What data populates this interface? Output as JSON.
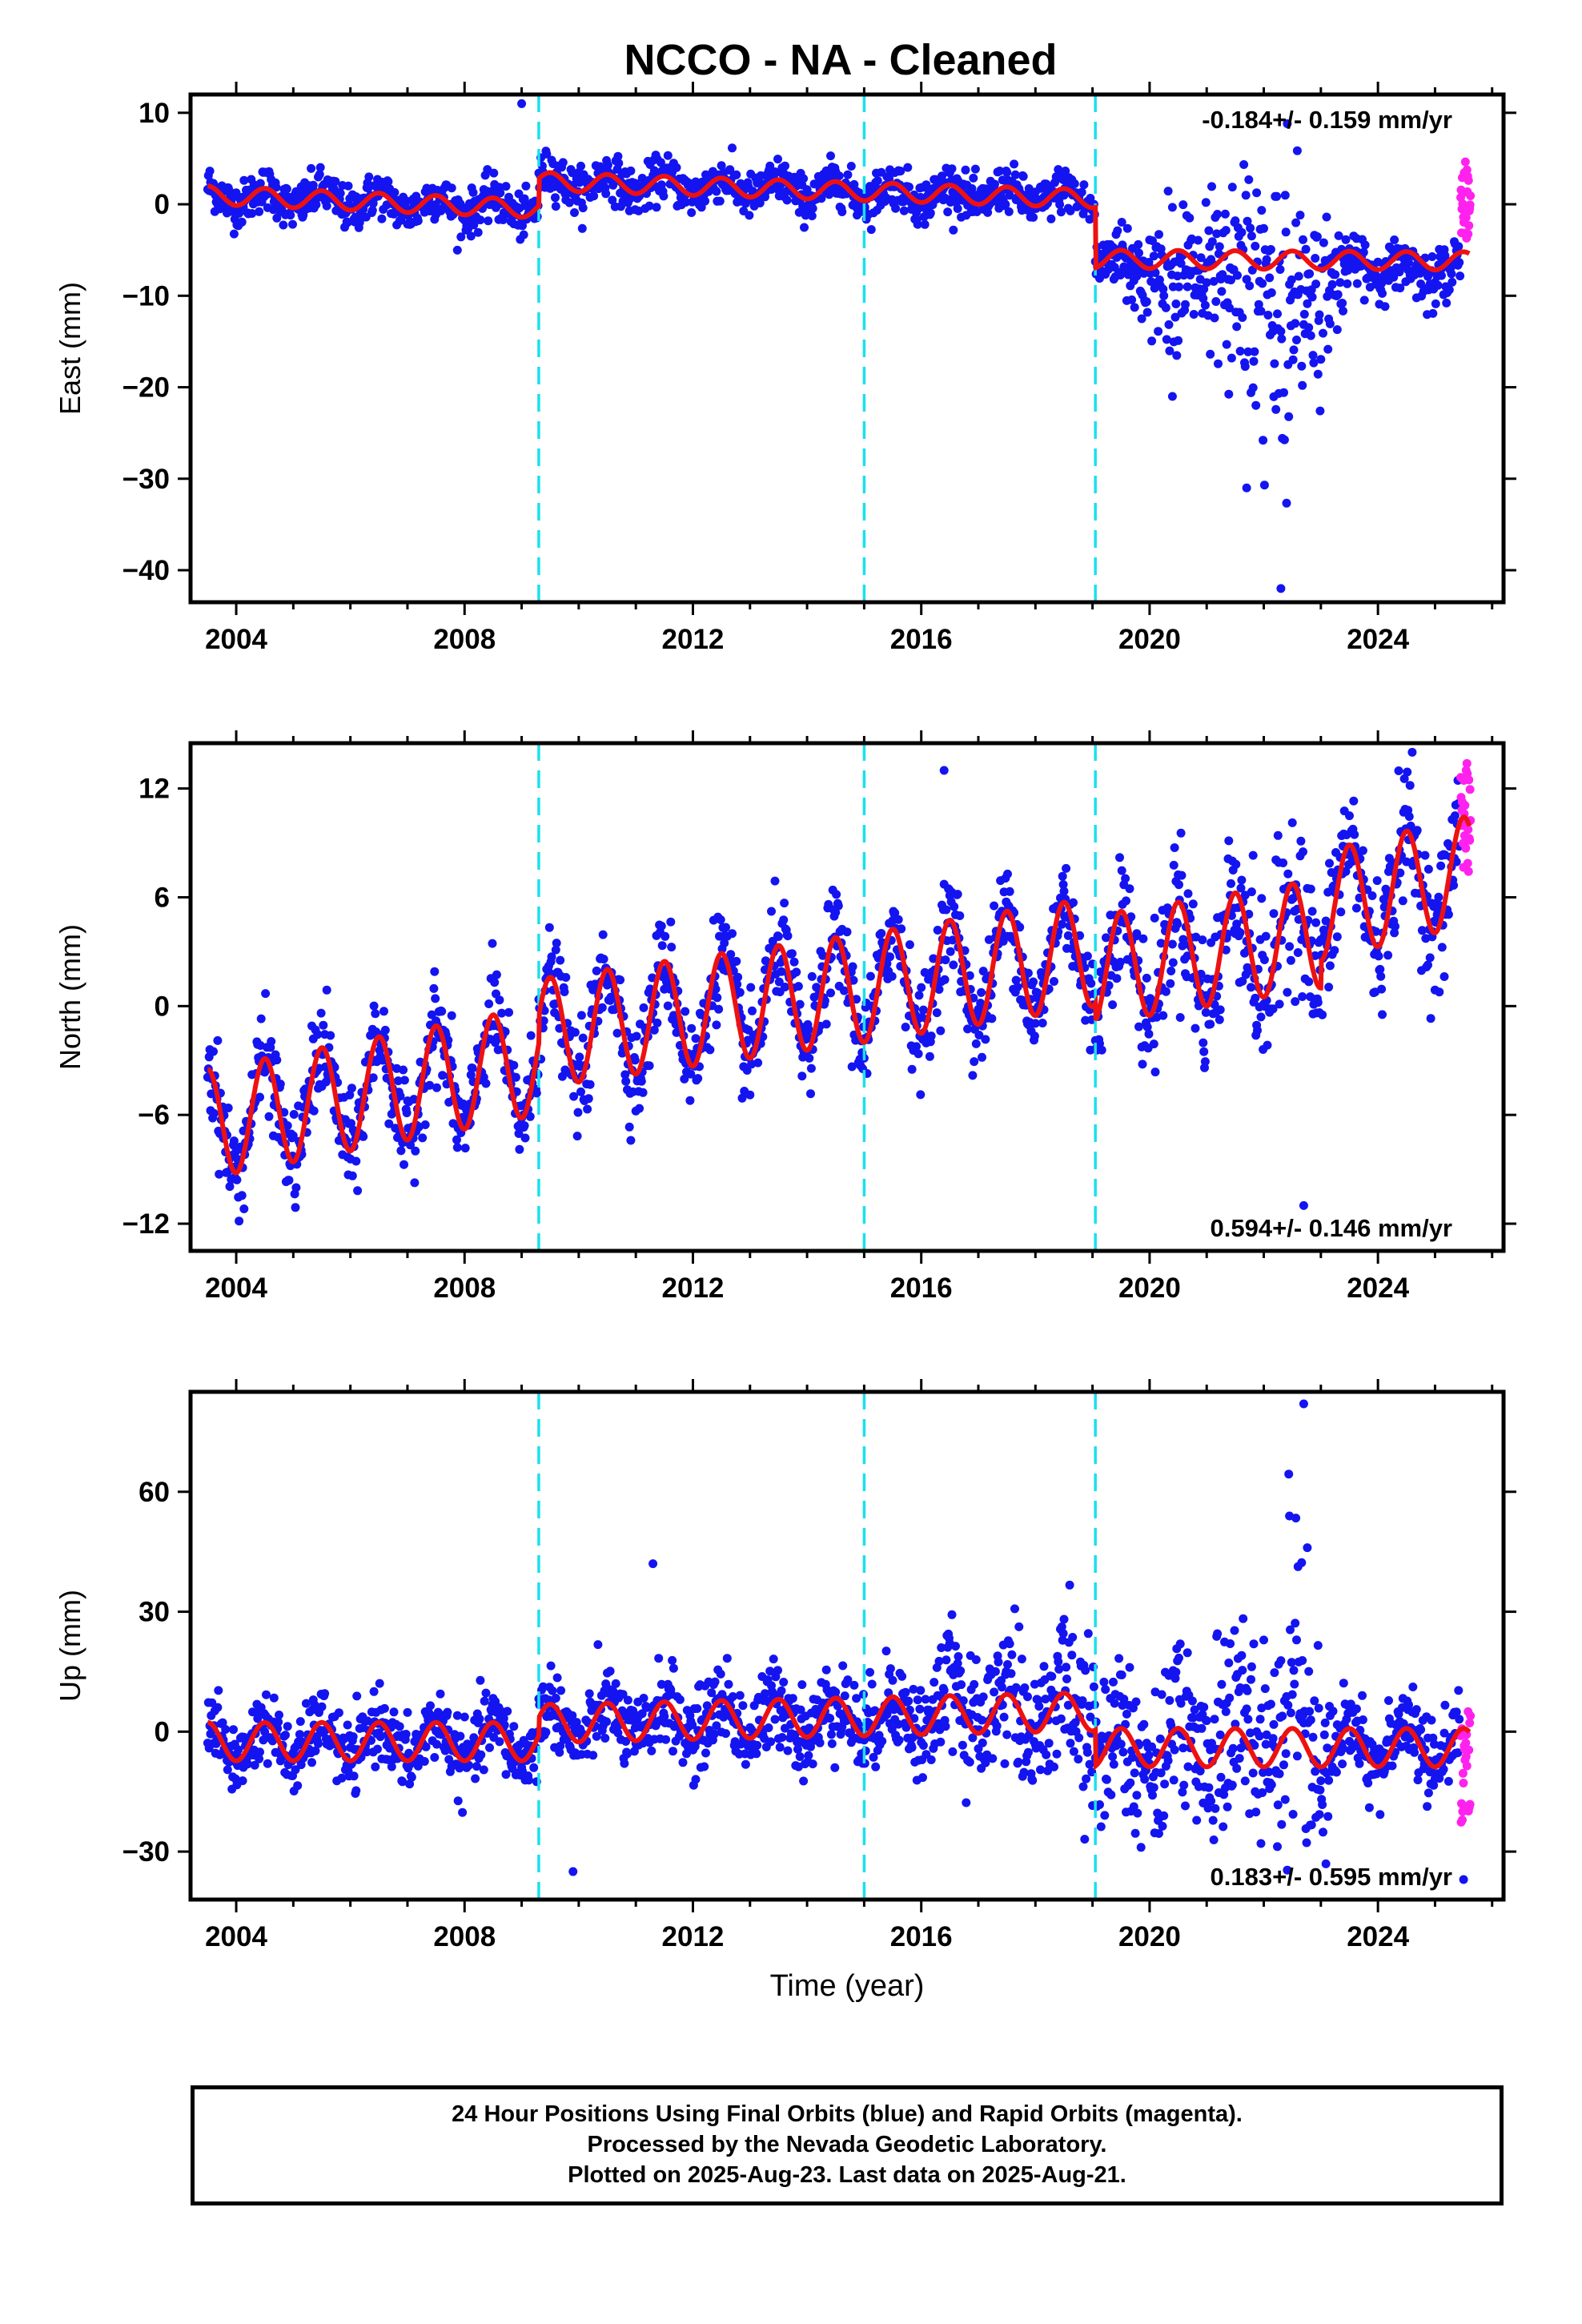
{
  "title": "NCCO  - NA - Cleaned",
  "colors": {
    "final_orbits": "#1414f0",
    "rapid_orbits": "#ff22ee",
    "model": "#ee1111",
    "steps": "#19e0ee"
  },
  "footer": {
    "line1": "24 Hour Positions Using Final Orbits (blue) and Rapid Orbits (magenta).",
    "line2": "Processed by the Nevada Geodetic Laboratory.",
    "line3": "Plotted on 2025-Aug-23. Last data on 2025-Aug-21."
  },
  "chart_data": [
    {
      "type": "scatter",
      "ylabel": "East (mm)",
      "xlabel": "",
      "xlim": [
        2003.2,
        2026.2
      ],
      "ylim": [
        -43.5,
        12
      ],
      "x_ticks": [
        2004,
        2008,
        2012,
        2016,
        2020,
        2024
      ],
      "y_ticks": [
        10,
        0,
        -10,
        -20,
        -30,
        -40
      ],
      "annotation": "-0.184+/- 0.159 mm/yr",
      "annotation_position": "top-right",
      "offset_lines": [
        2009.3,
        2015.0,
        2019.05
      ],
      "model": {
        "name": "",
        "x": [
          2003.5,
          2009.3,
          2009.3,
          2019.05,
          2019.05,
          2025.6
        ],
        "offset": [
          1.0,
          -0.5,
          2.5,
          0.6,
          -6.0,
          -6.2
        ],
        "seasonal_amp": 1.0
      },
      "noise": {
        "x": [
          2003.5,
          2019.0,
          2020.0,
          2021.5,
          2022.3,
          2022.8,
          2023.5,
          2025.6
        ],
        "sd": [
          1.2,
          1.2,
          2.5,
          5.0,
          9.0,
          6.0,
          1.3,
          1.2
        ]
      },
      "outliers": [
        {
          "x": 2009.0,
          "y": 11
        },
        {
          "x": 2021.7,
          "y": -31
        },
        {
          "x": 2022.3,
          "y": -42
        },
        {
          "x": 2020.4,
          "y": -21
        }
      ],
      "rapid": {
        "x_start": 2025.45,
        "x_end": 2025.62,
        "y_min": -4,
        "y_max": 5
      }
    },
    {
      "type": "scatter",
      "ylabel": "North (mm)",
      "xlabel": "",
      "xlim": [
        2003.2,
        2026.2
      ],
      "ylim": [
        -13.5,
        14.5
      ],
      "x_ticks": [
        2004,
        2008,
        2012,
        2016,
        2020,
        2024
      ],
      "y_ticks": [
        12,
        6,
        0,
        -6,
        -12
      ],
      "annotation": "0.594+/- 0.146 mm/yr",
      "annotation_position": "bottom-right",
      "offset_lines": [
        2009.3,
        2015.0,
        2019.05
      ],
      "model": {
        "name": "",
        "x": [
          2003.5,
          2009.3,
          2009.3,
          2015.0,
          2019.05,
          2019.05,
          2023.0,
          2023.0,
          2025.6
        ],
        "offset": [
          -6.5,
          -3.0,
          -1.5,
          1.0,
          3.0,
          2.0,
          4.0,
          5.5,
          7.5
        ],
        "seasonal_amp": 3.0
      },
      "noise": {
        "x": [
          2003.5,
          2019.0,
          2021.0,
          2022.5,
          2023.2,
          2025.6
        ],
        "sd": [
          1.3,
          1.4,
          2.0,
          2.4,
          1.8,
          1.6
        ]
      },
      "outliers": [
        {
          "x": 2016.4,
          "y": 13
        },
        {
          "x": 2022.7,
          "y": -11
        },
        {
          "x": 2024.6,
          "y": 14
        }
      ],
      "rapid": {
        "x_start": 2025.45,
        "x_end": 2025.62,
        "y_min": 7,
        "y_max": 13.5
      }
    },
    {
      "type": "scatter",
      "ylabel": "Up (mm)",
      "xlabel": "Time (year)",
      "xlim": [
        2003.2,
        2026.2
      ],
      "ylim": [
        -42,
        85
      ],
      "x_ticks": [
        2004,
        2008,
        2012,
        2016,
        2020,
        2024
      ],
      "y_ticks": [
        60,
        30,
        0,
        -30
      ],
      "annotation": "0.183+/- 0.595 mm/yr",
      "annotation_position": "bottom-right",
      "offset_lines": [
        2009.3,
        2015.0,
        2019.05
      ],
      "model": {
        "name": "",
        "x": [
          2003.5,
          2009.3,
          2009.3,
          2019.05,
          2019.05,
          2025.6
        ],
        "offset": [
          -2.5,
          -2.5,
          2.0,
          5.0,
          -4.0,
          -4.0
        ],
        "seasonal_amp": 4.8
      },
      "noise": {
        "x": [
          2003.5,
          2009.3,
          2016.0,
          2018.8,
          2020.0,
          2021.5,
          2022.5,
          2023.0,
          2023.2,
          2025.6
        ],
        "sd": [
          4.0,
          4.5,
          6.0,
          10.0,
          11.0,
          14.0,
          20.0,
          12.0,
          5.0,
          5.0
        ]
      },
      "outliers": [
        {
          "x": 2009.9,
          "y": -35
        },
        {
          "x": 2011.3,
          "y": 42
        },
        {
          "x": 2022.7,
          "y": 82
        },
        {
          "x": 2025.5,
          "y": -37
        }
      ],
      "rapid": {
        "x_start": 2025.45,
        "x_end": 2025.62,
        "y_min": -25,
        "y_max": 5
      }
    }
  ]
}
